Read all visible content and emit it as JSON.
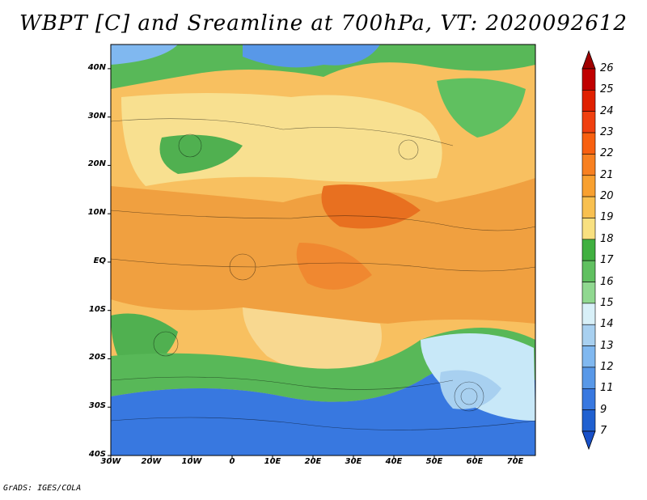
{
  "title": "WBPT [C] and Sreamline at 700hPa, VT: 2020092612",
  "credit": "GrADS: IGES/COLA",
  "map": {
    "lat_labels": [
      "40N",
      "30N",
      "20N",
      "10N",
      "EQ",
      "10S",
      "20S",
      "30S",
      "40S"
    ],
    "lon_labels": [
      "30W",
      "20W",
      "10W",
      "0",
      "10E",
      "20E",
      "30E",
      "40E",
      "50E",
      "60E",
      "70E"
    ],
    "lat_range": [
      -40,
      45
    ],
    "lon_range": [
      -30,
      75
    ]
  },
  "colorbar": {
    "labels": [
      "26",
      "25",
      "24",
      "23",
      "22",
      "21",
      "20",
      "19",
      "18",
      "17",
      "16",
      "15",
      "14",
      "13",
      "12",
      "11",
      "9",
      "7"
    ],
    "colors": [
      "#c00000",
      "#e02000",
      "#f04010",
      "#f86010",
      "#f88020",
      "#f8a030",
      "#f8c050",
      "#f8e080",
      "#40b040",
      "#60c060",
      "#90d890",
      "#d8f0f8",
      "#a8d0f0",
      "#80b8f0",
      "#5898e8",
      "#3878e0",
      "#2060d0"
    ]
  }
}
